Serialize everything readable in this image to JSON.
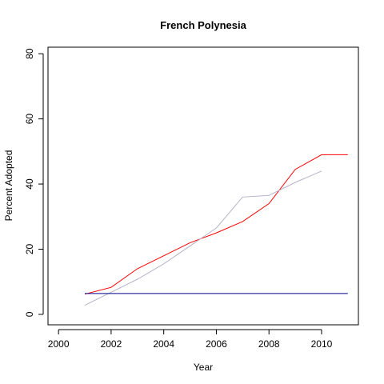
{
  "chart_data": {
    "type": "line",
    "title": "French Polynesia",
    "xlabel": "Year",
    "ylabel": "Percent Adopted",
    "xlim": [
      1999.6,
      2011.4
    ],
    "ylim": [
      -3.2,
      82
    ],
    "xticks": [
      2000,
      2002,
      2004,
      2006,
      2008,
      2010
    ],
    "xtick_labels": [
      "2000",
      "2002",
      "2004",
      "2006",
      "2008",
      "2010"
    ],
    "yticks": [
      0,
      20,
      40,
      60,
      80
    ],
    "ytick_labels": [
      "0",
      "20",
      "40",
      "60",
      "80"
    ],
    "grid": false,
    "legend": "none",
    "series": [
      {
        "color": "#ff0000",
        "x": [
          2001,
          2002,
          2003,
          2004,
          2005,
          2006,
          2007,
          2008,
          2009,
          2010,
          2011
        ],
        "y": [
          6.2,
          8.3,
          14,
          18,
          22,
          25,
          28.5,
          34,
          44.5,
          49,
          49
        ]
      },
      {
        "color": "#b4b4c8",
        "x": [
          2001,
          2002,
          2003,
          2004,
          2005,
          2006,
          2007,
          2008,
          2009,
          2010
        ],
        "y": [
          2.8,
          6.8,
          10.8,
          15.5,
          21,
          26.5,
          36,
          36.5,
          40.5,
          44
        ]
      },
      {
        "color": "#00008b",
        "x": [
          2001,
          2011
        ],
        "y": [
          6.4,
          6.4
        ]
      }
    ]
  }
}
